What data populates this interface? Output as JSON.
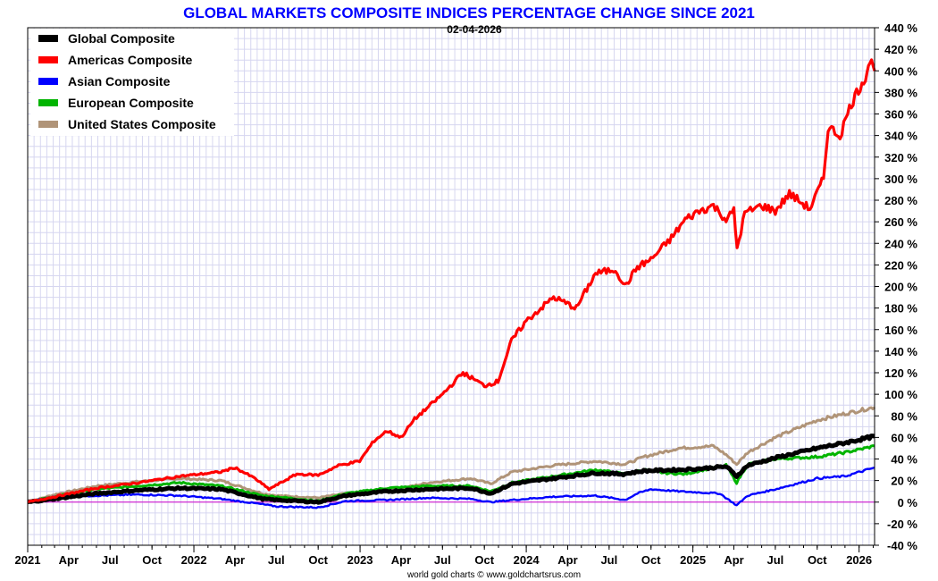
{
  "chart_data": {
    "type": "line",
    "title": "GLOBAL MARKETS COMPOSITE INDICES PERCENTAGE CHANGE SINCE 2021",
    "subtitle": "02-04-2026",
    "credit": "world gold charts © www.goldchartsrus.com",
    "xlabel": "",
    "ylabel": "",
    "ylim": [
      -40,
      440
    ],
    "xlim": [
      "2021-01-01",
      "2026-02-04"
    ],
    "y_ticks": [
      "440 %",
      "420 %",
      "400 %",
      "380 %",
      "360 %",
      "340 %",
      "320 %",
      "300 %",
      "280 %",
      "260 %",
      "240 %",
      "220 %",
      "200 %",
      "180 %",
      "160 %",
      "140 %",
      "120 %",
      "100 %",
      "80 %",
      "60 %",
      "40 %",
      "20 %",
      "0 %",
      "-20 %",
      "-40 %"
    ],
    "x_ticks": [
      {
        "label": "2021",
        "date": "2021-01-01",
        "major": true
      },
      {
        "label": "Apr",
        "date": "2021-04-01",
        "major": false
      },
      {
        "label": "Jul",
        "date": "2021-07-01",
        "major": false
      },
      {
        "label": "Oct",
        "date": "2021-10-01",
        "major": false
      },
      {
        "label": "2022",
        "date": "2022-01-01",
        "major": true
      },
      {
        "label": "Apr",
        "date": "2022-04-01",
        "major": false
      },
      {
        "label": "Jul",
        "date": "2022-07-01",
        "major": false
      },
      {
        "label": "Oct",
        "date": "2022-10-01",
        "major": false
      },
      {
        "label": "2023",
        "date": "2023-01-01",
        "major": true
      },
      {
        "label": "Apr",
        "date": "2023-04-01",
        "major": false
      },
      {
        "label": "Jul",
        "date": "2023-07-01",
        "major": false
      },
      {
        "label": "Oct",
        "date": "2023-10-01",
        "major": false
      },
      {
        "label": "2024",
        "date": "2024-01-01",
        "major": true
      },
      {
        "label": "Apr",
        "date": "2024-04-01",
        "major": false
      },
      {
        "label": "Jul",
        "date": "2024-07-01",
        "major": false
      },
      {
        "label": "Oct",
        "date": "2024-10-01",
        "major": false
      },
      {
        "label": "2025",
        "date": "2025-01-01",
        "major": true
      },
      {
        "label": "Apr",
        "date": "2025-04-01",
        "major": false
      },
      {
        "label": "Jul",
        "date": "2025-07-01",
        "major": false
      },
      {
        "label": "Oct",
        "date": "2025-10-01",
        "major": false
      },
      {
        "label": "2026",
        "date": "2026-01-01",
        "major": true
      }
    ],
    "grid": true,
    "legend_position": "top-left",
    "zero_line_color": "#cc00cc",
    "series": [
      {
        "name": "Global Composite",
        "color": "#000000",
        "points": [
          [
            "2021-01-01",
            0
          ],
          [
            "2021-03-01",
            3
          ],
          [
            "2021-06-01",
            8
          ],
          [
            "2021-09-01",
            11
          ],
          [
            "2021-12-01",
            13
          ],
          [
            "2022-03-01",
            12
          ],
          [
            "2022-06-01",
            3
          ],
          [
            "2022-07-01",
            2
          ],
          [
            "2022-10-01",
            0
          ],
          [
            "2022-12-01",
            6
          ],
          [
            "2023-03-01",
            10
          ],
          [
            "2023-06-01",
            12
          ],
          [
            "2023-09-01",
            13
          ],
          [
            "2023-10-15",
            8
          ],
          [
            "2023-12-01",
            17
          ],
          [
            "2024-03-01",
            22
          ],
          [
            "2024-06-01",
            27
          ],
          [
            "2024-08-01",
            26
          ],
          [
            "2024-09-15",
            29
          ],
          [
            "2024-12-01",
            30
          ],
          [
            "2025-01-15",
            31
          ],
          [
            "2025-03-15",
            33
          ],
          [
            "2025-04-07",
            24
          ],
          [
            "2025-05-01",
            34
          ],
          [
            "2025-07-01",
            41
          ],
          [
            "2025-10-01",
            50
          ],
          [
            "2025-12-01",
            55
          ],
          [
            "2026-02-04",
            61
          ]
        ]
      },
      {
        "name": "Americas Composite",
        "color": "#ff0000",
        "points": [
          [
            "2021-01-01",
            0
          ],
          [
            "2021-03-01",
            5
          ],
          [
            "2021-06-01",
            13
          ],
          [
            "2021-09-01",
            18
          ],
          [
            "2021-12-01",
            24
          ],
          [
            "2022-03-01",
            28
          ],
          [
            "2022-04-01",
            32
          ],
          [
            "2022-05-15",
            22
          ],
          [
            "2022-06-15",
            12
          ],
          [
            "2022-08-15",
            26
          ],
          [
            "2022-10-01",
            25
          ],
          [
            "2022-11-15",
            34
          ],
          [
            "2022-12-31",
            38
          ],
          [
            "2023-02-01",
            57
          ],
          [
            "2023-03-01",
            66
          ],
          [
            "2023-04-01",
            60
          ],
          [
            "2023-05-01",
            77
          ],
          [
            "2023-07-01",
            100
          ],
          [
            "2023-08-15",
            120
          ],
          [
            "2023-10-01",
            108
          ],
          [
            "2023-10-31",
            112
          ],
          [
            "2023-11-30",
            150
          ],
          [
            "2024-01-01",
            168
          ],
          [
            "2024-03-01",
            190
          ],
          [
            "2024-04-20",
            180
          ],
          [
            "2024-06-01",
            212
          ],
          [
            "2024-07-15",
            216
          ],
          [
            "2024-08-05",
            200
          ],
          [
            "2024-09-01",
            218
          ],
          [
            "2024-10-01",
            225
          ],
          [
            "2024-11-15",
            245
          ],
          [
            "2024-12-15",
            262
          ],
          [
            "2025-01-15",
            270
          ],
          [
            "2025-02-15",
            275
          ],
          [
            "2025-03-15",
            262
          ],
          [
            "2025-04-01",
            270
          ],
          [
            "2025-04-08",
            235
          ],
          [
            "2025-04-25",
            268
          ],
          [
            "2025-06-01",
            275
          ],
          [
            "2025-07-01",
            270
          ],
          [
            "2025-08-01",
            286
          ],
          [
            "2025-09-15",
            272
          ],
          [
            "2025-10-15",
            300
          ],
          [
            "2025-10-25",
            348
          ],
          [
            "2025-11-20",
            340
          ],
          [
            "2025-12-15",
            370
          ],
          [
            "2026-01-15",
            395
          ],
          [
            "2026-01-25",
            410
          ],
          [
            "2026-02-04",
            400
          ]
        ]
      },
      {
        "name": "Asian Composite",
        "color": "#0000ff",
        "points": [
          [
            "2021-01-01",
            0
          ],
          [
            "2021-03-01",
            5
          ],
          [
            "2021-06-01",
            6
          ],
          [
            "2021-09-01",
            7
          ],
          [
            "2021-12-01",
            6
          ],
          [
            "2022-03-01",
            3
          ],
          [
            "2022-06-01",
            -2
          ],
          [
            "2022-07-01",
            -4
          ],
          [
            "2022-10-01",
            -5
          ],
          [
            "2022-12-01",
            1
          ],
          [
            "2023-03-01",
            2
          ],
          [
            "2023-06-01",
            4
          ],
          [
            "2023-09-01",
            3
          ],
          [
            "2023-10-15",
            0
          ],
          [
            "2023-12-01",
            2
          ],
          [
            "2024-03-01",
            5
          ],
          [
            "2024-06-01",
            6
          ],
          [
            "2024-08-05",
            2
          ],
          [
            "2024-09-01",
            8
          ],
          [
            "2024-10-01",
            12
          ],
          [
            "2024-12-01",
            10
          ],
          [
            "2025-03-01",
            8
          ],
          [
            "2025-04-07",
            -3
          ],
          [
            "2025-05-01",
            6
          ],
          [
            "2025-07-01",
            12
          ],
          [
            "2025-10-01",
            22
          ],
          [
            "2025-12-01",
            24
          ],
          [
            "2026-02-04",
            32
          ]
        ]
      },
      {
        "name": "European Composite",
        "color": "#00b400",
        "points": [
          [
            "2021-01-01",
            0
          ],
          [
            "2021-03-01",
            5
          ],
          [
            "2021-06-01",
            12
          ],
          [
            "2021-09-01",
            15
          ],
          [
            "2021-12-01",
            18
          ],
          [
            "2022-03-01",
            15
          ],
          [
            "2022-06-01",
            6
          ],
          [
            "2022-07-01",
            5
          ],
          [
            "2022-10-01",
            1
          ],
          [
            "2022-12-01",
            8
          ],
          [
            "2023-03-01",
            13
          ],
          [
            "2023-06-01",
            15
          ],
          [
            "2023-09-01",
            15
          ],
          [
            "2023-10-15",
            10
          ],
          [
            "2023-12-01",
            18
          ],
          [
            "2024-03-01",
            24
          ],
          [
            "2024-06-01",
            30
          ],
          [
            "2024-08-05",
            26
          ],
          [
            "2024-09-15",
            30
          ],
          [
            "2024-11-01",
            27
          ],
          [
            "2024-12-15",
            26
          ],
          [
            "2025-02-15",
            32
          ],
          [
            "2025-03-15",
            34
          ],
          [
            "2025-04-07",
            18
          ],
          [
            "2025-05-01",
            35
          ],
          [
            "2025-07-01",
            40
          ],
          [
            "2025-10-01",
            42
          ],
          [
            "2025-12-01",
            46
          ],
          [
            "2026-02-04",
            52
          ]
        ]
      },
      {
        "name": "United States Composite",
        "color": "#b09478",
        "points": [
          [
            "2021-01-01",
            0
          ],
          [
            "2021-03-01",
            7
          ],
          [
            "2021-06-01",
            15
          ],
          [
            "2021-09-01",
            19
          ],
          [
            "2021-12-01",
            22
          ],
          [
            "2022-03-01",
            20
          ],
          [
            "2022-06-01",
            8
          ],
          [
            "2022-07-01",
            6
          ],
          [
            "2022-10-01",
            4
          ],
          [
            "2022-12-01",
            8
          ],
          [
            "2023-03-01",
            10
          ],
          [
            "2023-06-01",
            18
          ],
          [
            "2023-09-01",
            22
          ],
          [
            "2023-10-15",
            17
          ],
          [
            "2023-12-01",
            28
          ],
          [
            "2024-03-01",
            34
          ],
          [
            "2024-06-01",
            38
          ],
          [
            "2024-08-05",
            35
          ],
          [
            "2024-09-15",
            42
          ],
          [
            "2024-12-01",
            50
          ],
          [
            "2025-02-15",
            52
          ],
          [
            "2025-03-15",
            44
          ],
          [
            "2025-04-07",
            35
          ],
          [
            "2025-05-01",
            46
          ],
          [
            "2025-07-01",
            60
          ],
          [
            "2025-10-01",
            76
          ],
          [
            "2025-12-01",
            82
          ],
          [
            "2026-02-04",
            88
          ]
        ]
      }
    ]
  }
}
